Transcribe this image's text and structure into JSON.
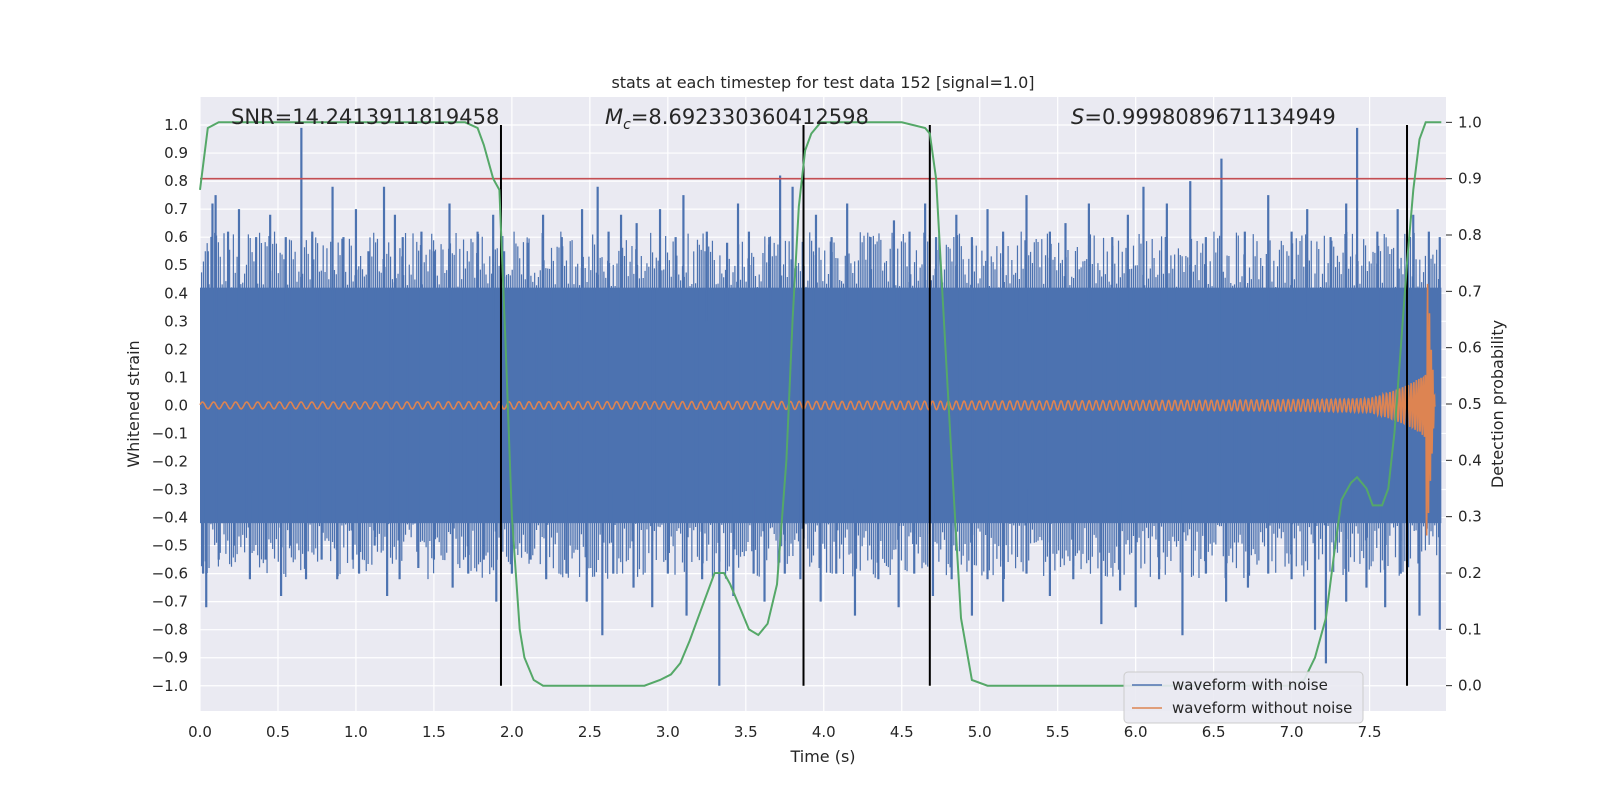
{
  "chart_data": {
    "type": "line",
    "title": "stats at each timestep for test data 152 [signal=1.0]",
    "xlabel": "Time (s)",
    "ylabel": "Whitened strain",
    "ylabel_right": "Detection probability",
    "xlim": [
      0.0,
      7.99
    ],
    "ylim": [
      -1.09,
      1.1
    ],
    "ylim_right": [
      -0.045,
      1.045
    ],
    "xticks": [
      "0.0",
      "0.5",
      "1.0",
      "1.5",
      "2.0",
      "2.5",
      "3.0",
      "3.5",
      "4.0",
      "4.5",
      "5.0",
      "5.5",
      "6.0",
      "6.5",
      "7.0",
      "7.5"
    ],
    "yticks": [
      "1.0",
      "0.9",
      "0.8",
      "0.7",
      "0.6",
      "0.5",
      "0.4",
      "0.3",
      "0.2",
      "0.1",
      "0.0",
      "−0.1",
      "−0.2",
      "−0.3",
      "−0.4",
      "−0.5",
      "−0.6",
      "−0.7",
      "−0.8",
      "−0.9",
      "−1.0"
    ],
    "yticks_right": [
      "1.0",
      "0.9",
      "0.8",
      "0.7",
      "0.6",
      "0.5",
      "0.4",
      "0.3",
      "0.2",
      "0.1",
      "0.0"
    ],
    "grid": true,
    "annotations": {
      "snr": "SNR=14.2413911819458",
      "mc_symbol": "M",
      "mc_sub": "c",
      "mc_value": "=8.692330360412598",
      "s_symbol": "S",
      "s_value": "=0.9998089671134949"
    },
    "threshold": 0.9,
    "threshold_color": "#c44e52",
    "vertical_lines": [
      1.93,
      3.87,
      4.68,
      7.74
    ],
    "vertical_line_range": [
      -1.0,
      1.0
    ],
    "series": [
      {
        "name": "waveform with noise",
        "color": "#4c72b0",
        "axis": "left",
        "noise_band": [
          -0.42,
          0.42
        ],
        "spikes_up": [
          [
            0.05,
            0.55
          ],
          [
            0.08,
            0.72
          ],
          [
            0.1,
            0.75
          ],
          [
            0.18,
            0.62
          ],
          [
            0.25,
            0.7
          ],
          [
            0.36,
            0.6
          ],
          [
            0.45,
            0.68
          ],
          [
            0.55,
            0.6
          ],
          [
            0.65,
            0.99
          ],
          [
            0.72,
            0.62
          ],
          [
            0.85,
            0.78
          ],
          [
            0.92,
            0.6
          ],
          [
            1.0,
            0.7
          ],
          [
            1.08,
            0.55
          ],
          [
            1.18,
            0.78
          ],
          [
            1.25,
            0.68
          ],
          [
            1.3,
            0.6
          ],
          [
            1.42,
            0.62
          ],
          [
            1.5,
            0.55
          ],
          [
            1.6,
            0.72
          ],
          [
            1.78,
            0.62
          ],
          [
            1.88,
            0.68
          ],
          [
            1.95,
            0.55
          ],
          [
            2.1,
            0.58
          ],
          [
            2.2,
            0.68
          ],
          [
            2.32,
            0.6
          ],
          [
            2.45,
            0.7
          ],
          [
            2.55,
            0.78
          ],
          [
            2.62,
            0.62
          ],
          [
            2.7,
            0.68
          ],
          [
            2.8,
            0.65
          ],
          [
            2.95,
            0.7
          ],
          [
            3.05,
            0.6
          ],
          [
            3.1,
            0.75
          ],
          [
            3.25,
            0.62
          ],
          [
            3.38,
            0.58
          ],
          [
            3.45,
            0.72
          ],
          [
            3.52,
            0.62
          ],
          [
            3.65,
            0.6
          ],
          [
            3.72,
            0.82
          ],
          [
            3.8,
            0.78
          ],
          [
            3.95,
            0.68
          ],
          [
            4.05,
            0.6
          ],
          [
            4.15,
            0.72
          ],
          [
            4.3,
            0.6
          ],
          [
            4.45,
            0.66
          ],
          [
            4.55,
            0.62
          ],
          [
            4.65,
            0.72
          ],
          [
            4.72,
            0.6
          ],
          [
            4.85,
            0.68
          ],
          [
            4.95,
            0.6
          ],
          [
            5.05,
            0.7
          ],
          [
            5.15,
            0.62
          ],
          [
            5.3,
            0.75
          ],
          [
            5.45,
            0.62
          ],
          [
            5.55,
            0.65
          ],
          [
            5.7,
            0.72
          ],
          [
            5.85,
            0.6
          ],
          [
            5.95,
            0.68
          ],
          [
            6.05,
            0.78
          ],
          [
            6.2,
            0.72
          ],
          [
            6.35,
            0.8
          ],
          [
            6.45,
            0.6
          ],
          [
            6.55,
            0.88
          ],
          [
            6.7,
            0.62
          ],
          [
            6.85,
            0.75
          ],
          [
            7.0,
            0.62
          ],
          [
            7.1,
            0.7
          ],
          [
            7.25,
            0.6
          ],
          [
            7.35,
            0.72
          ],
          [
            7.42,
            0.99
          ],
          [
            7.55,
            0.62
          ],
          [
            7.68,
            0.7
          ],
          [
            7.78,
            0.68
          ],
          [
            7.88,
            0.62
          ],
          [
            7.95,
            0.6
          ]
        ],
        "spikes_down": [
          [
            0.02,
            -0.6
          ],
          [
            0.04,
            -0.72
          ],
          [
            0.12,
            -0.55
          ],
          [
            0.22,
            -0.5
          ],
          [
            0.32,
            -0.62
          ],
          [
            0.42,
            -0.55
          ],
          [
            0.52,
            -0.68
          ],
          [
            0.58,
            -0.5
          ],
          [
            0.68,
            -0.62
          ],
          [
            0.78,
            -0.55
          ],
          [
            0.88,
            -0.62
          ],
          [
            0.98,
            -0.55
          ],
          [
            1.02,
            -0.6
          ],
          [
            1.12,
            -0.5
          ],
          [
            1.2,
            -0.68
          ],
          [
            1.28,
            -0.62
          ],
          [
            1.4,
            -0.58
          ],
          [
            1.5,
            -0.55
          ],
          [
            1.62,
            -0.65
          ],
          [
            1.72,
            -0.6
          ],
          [
            1.82,
            -0.55
          ],
          [
            1.9,
            -0.7
          ],
          [
            2.0,
            -0.6
          ],
          [
            2.12,
            -0.55
          ],
          [
            2.22,
            -0.62
          ],
          [
            2.35,
            -0.6
          ],
          [
            2.48,
            -0.7
          ],
          [
            2.58,
            -0.82
          ],
          [
            2.65,
            -0.6
          ],
          [
            2.78,
            -0.65
          ],
          [
            2.9,
            -0.72
          ],
          [
            3.0,
            -0.6
          ],
          [
            3.12,
            -0.75
          ],
          [
            3.22,
            -0.62
          ],
          [
            3.33,
            -1.0
          ],
          [
            3.42,
            -0.68
          ],
          [
            3.55,
            -0.6
          ],
          [
            3.62,
            -0.7
          ],
          [
            3.75,
            -0.6
          ],
          [
            3.85,
            -0.62
          ],
          [
            3.98,
            -0.7
          ],
          [
            4.08,
            -0.6
          ],
          [
            4.2,
            -0.75
          ],
          [
            4.35,
            -0.62
          ],
          [
            4.48,
            -0.72
          ],
          [
            4.58,
            -0.6
          ],
          [
            4.7,
            -0.68
          ],
          [
            4.82,
            -0.62
          ],
          [
            4.95,
            -0.75
          ],
          [
            5.05,
            -0.62
          ],
          [
            5.15,
            -0.7
          ],
          [
            5.3,
            -0.6
          ],
          [
            5.45,
            -0.68
          ],
          [
            5.6,
            -0.62
          ],
          [
            5.78,
            -0.78
          ],
          [
            5.9,
            -0.66
          ],
          [
            6.0,
            -0.72
          ],
          [
            6.15,
            -0.62
          ],
          [
            6.3,
            -0.82
          ],
          [
            6.45,
            -0.6
          ],
          [
            6.58,
            -0.7
          ],
          [
            6.72,
            -0.65
          ],
          [
            6.85,
            -0.6
          ],
          [
            7.0,
            -0.62
          ],
          [
            7.15,
            -0.8
          ],
          [
            7.22,
            -0.92
          ],
          [
            7.35,
            -0.7
          ],
          [
            7.48,
            -0.65
          ],
          [
            7.6,
            -0.72
          ],
          [
            7.7,
            -0.6
          ],
          [
            7.82,
            -0.75
          ],
          [
            7.95,
            -0.8
          ]
        ]
      },
      {
        "name": "waveform without noise",
        "color": "#dd8452",
        "axis": "left",
        "chirp": {
          "peak_time": 7.86,
          "end_time": 7.92,
          "amplitude_start": 0.012,
          "amplitude_peak": 0.55
        }
      },
      {
        "name": "detection probability",
        "color": "#55a868",
        "axis": "right",
        "x": [
          0.0,
          0.05,
          0.12,
          0.2,
          0.5,
          1.0,
          1.5,
          1.7,
          1.78,
          1.82,
          1.88,
          1.92,
          1.96,
          2.0,
          2.05,
          2.08,
          2.14,
          2.2,
          2.3,
          2.5,
          2.7,
          2.85,
          2.95,
          3.02,
          3.08,
          3.14,
          3.22,
          3.3,
          3.36,
          3.4,
          3.46,
          3.52,
          3.58,
          3.64,
          3.7,
          3.76,
          3.8,
          3.84,
          3.88,
          3.92,
          3.98,
          4.05,
          4.3,
          4.5,
          4.65,
          4.68,
          4.72,
          4.76,
          4.82,
          4.88,
          4.95,
          5.05,
          5.5,
          6.0,
          6.5,
          7.0,
          7.08,
          7.15,
          7.22,
          7.28,
          7.32,
          7.38,
          7.42,
          7.48,
          7.52,
          7.58,
          7.62,
          7.66,
          7.7,
          7.74,
          7.78,
          7.82,
          7.86,
          7.92,
          7.96
        ],
        "y": [
          0.88,
          0.99,
          1.0,
          1.0,
          1.0,
          1.0,
          1.0,
          1.0,
          0.99,
          0.96,
          0.9,
          0.88,
          0.6,
          0.3,
          0.1,
          0.05,
          0.01,
          0.0,
          0.0,
          0.0,
          0.0,
          0.0,
          0.01,
          0.02,
          0.04,
          0.08,
          0.14,
          0.2,
          0.2,
          0.18,
          0.14,
          0.1,
          0.09,
          0.11,
          0.18,
          0.4,
          0.65,
          0.85,
          0.95,
          0.98,
          1.0,
          1.0,
          1.0,
          1.0,
          0.99,
          0.98,
          0.9,
          0.7,
          0.4,
          0.12,
          0.01,
          0.0,
          0.0,
          0.0,
          0.0,
          0.0,
          0.01,
          0.05,
          0.12,
          0.25,
          0.33,
          0.36,
          0.37,
          0.35,
          0.32,
          0.32,
          0.35,
          0.45,
          0.6,
          0.75,
          0.88,
          0.97,
          1.0,
          1.0,
          1.0
        ]
      }
    ],
    "legend": {
      "placement": "lower-right",
      "entries": [
        "waveform with noise",
        "waveform without noise"
      ]
    }
  }
}
